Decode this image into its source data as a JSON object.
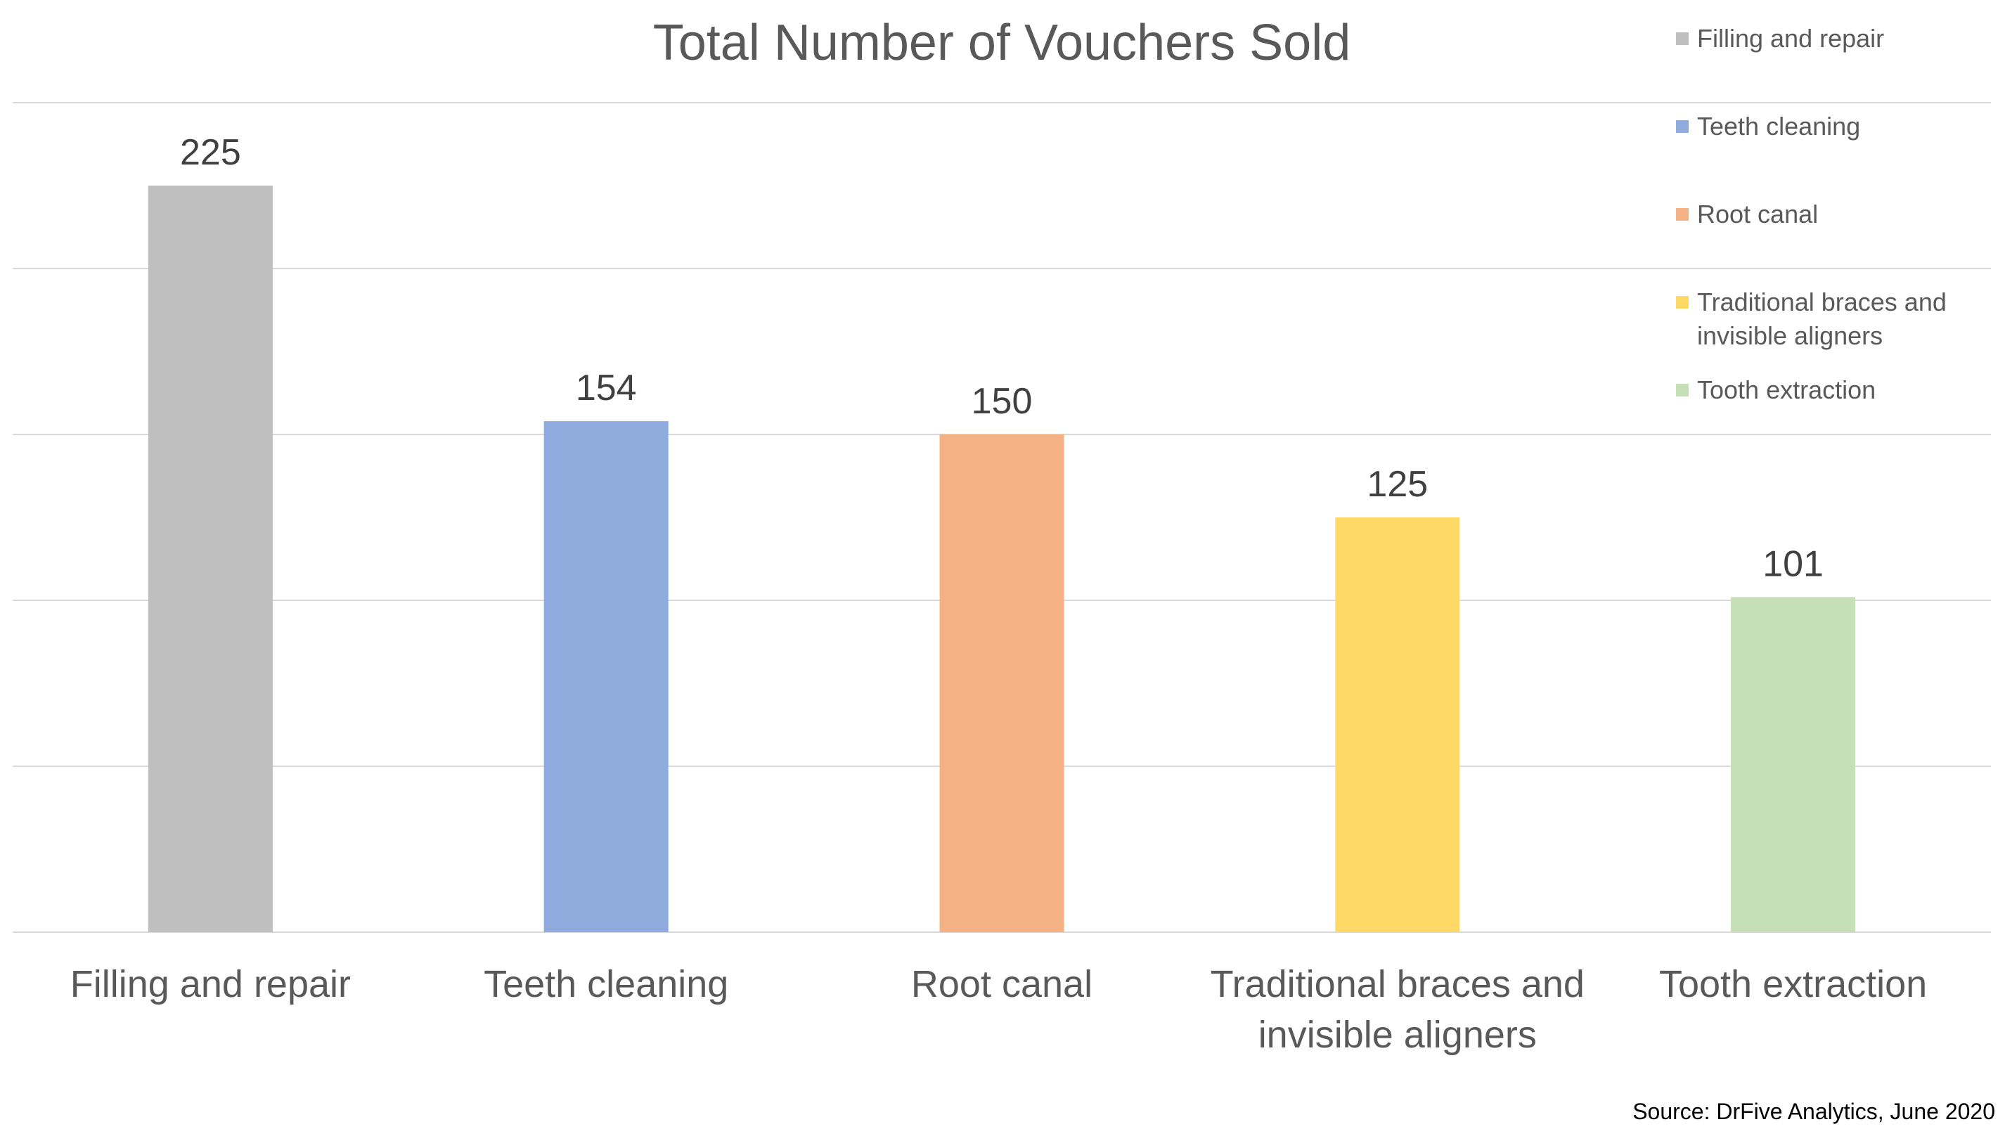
{
  "chart_data": {
    "type": "bar",
    "title": "Total Number of Vouchers Sold",
    "xlabel": "",
    "ylabel": "",
    "ylim": [
      0,
      250
    ],
    "grid": true,
    "legend_position": "top-right",
    "categories": [
      "Filling and repair",
      "Teeth cleaning",
      "Root canal",
      "Traditional braces and invisible aligners",
      "Tooth extraction"
    ],
    "category_lines": [
      [
        "Filling and repair"
      ],
      [
        "Teeth cleaning"
      ],
      [
        "Root canal"
      ],
      [
        "Traditional braces and",
        "invisible aligners"
      ],
      [
        "Tooth extraction"
      ]
    ],
    "values": [
      225,
      154,
      150,
      125,
      101
    ],
    "value_labels": [
      "225",
      "154",
      "150",
      "125",
      "101"
    ],
    "colors": [
      "#bfbfbf",
      "#8faadc",
      "#f4b183",
      "#ffd966",
      "#c5e0b4"
    ],
    "legend": {
      "entries": [
        {
          "lines": [
            "Filling and repair"
          ],
          "color": "#bfbfbf"
        },
        {
          "lines": [
            "Teeth cleaning"
          ],
          "color": "#8faadc"
        },
        {
          "lines": [
            "Root canal"
          ],
          "color": "#f4b183"
        },
        {
          "lines": [
            "Traditional braces and",
            "invisible aligners"
          ],
          "color": "#ffd966"
        },
        {
          "lines": [
            "Tooth extraction"
          ],
          "color": "#c5e0b4"
        }
      ]
    },
    "source": "Source: DrFive Analytics, June 2020"
  }
}
